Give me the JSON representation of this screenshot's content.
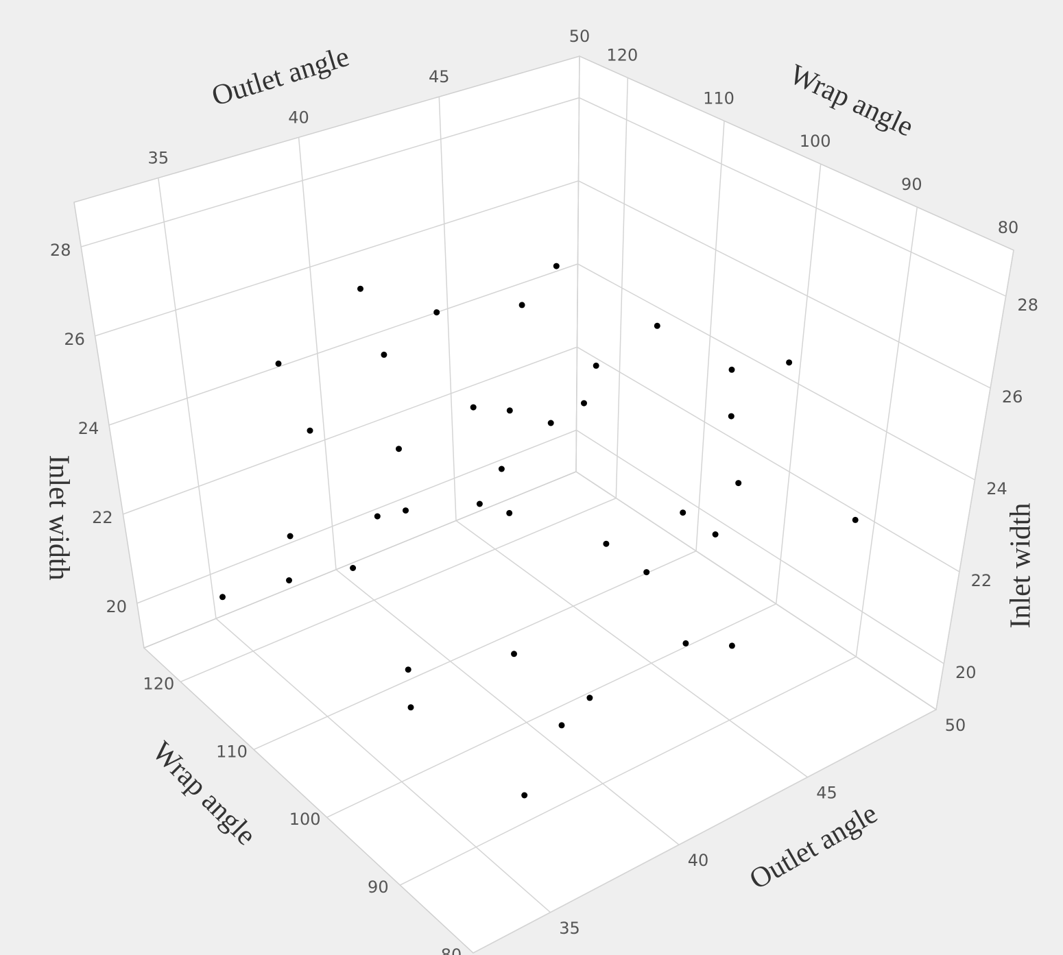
{
  "chart_data": {
    "type": "scatter3d",
    "xlabel": "Wrap angle",
    "ylabel": "Outlet angle",
    "zlabel": "Inlet width",
    "x": [
      109.6,
      117.0,
      112.2,
      114.4,
      119.5,
      114.2,
      100.6,
      114.8,
      117.9,
      97.2,
      87.6,
      117.3,
      110.2,
      99.4,
      119.0,
      118.3,
      101.8,
      116.5,
      100.6,
      88.9,
      119.2,
      108.6,
      101.2,
      95.9,
      99.0,
      86.4,
      115.8,
      117.1,
      100.6,
      88.4,
      116.1,
      122.1,
      103.0,
      91.0,
      93.1,
      103.9,
      97.1,
      104.7,
      93.3,
      90.4
    ],
    "y": [
      44.0,
      45.2,
      37.8,
      41.2,
      40.8,
      47.1,
      44.7,
      35.5,
      47.9,
      46.4,
      45.1,
      43.4,
      42.5,
      47.3,
      37.7,
      40.8,
      41.3,
      44.2,
      46.1,
      44.1,
      40.1,
      38.0,
      39.6,
      36.8,
      46.9,
      47.9,
      35.7,
      38.4,
      44.8,
      39.1,
      35.6,
      34.6,
      40.4,
      43.3,
      45.9,
      36.5,
      41.6,
      36.8,
      39.3,
      37.0
    ],
    "z": [
      27.0,
      25.0,
      27.5,
      26.0,
      24.5,
      23.5,
      26.5,
      26.0,
      22.0,
      25.5,
      27.0,
      23.0,
      24.0,
      24.0,
      23.5,
      22.5,
      25.0,
      21.5,
      22.0,
      24.5,
      21.0,
      23.0,
      23.5,
      25.0,
      21.5,
      23.0,
      22.0,
      20.5,
      21.0,
      24.5,
      21.0,
      20.0,
      20.0,
      21.0,
      20.0,
      20.5,
      19.5,
      19.5,
      20.0,
      19.5
    ],
    "color": "#000000",
    "xlim": [
      80,
      125
    ],
    "xticks": [
      80,
      90,
      100,
      110,
      120
    ],
    "ylim": [
      32,
      50
    ],
    "yticks": [
      35,
      40,
      45,
      50
    ],
    "zlim": [
      19,
      29
    ],
    "zticks": [
      20,
      22,
      24,
      26,
      28
    ],
    "grid": true
  }
}
